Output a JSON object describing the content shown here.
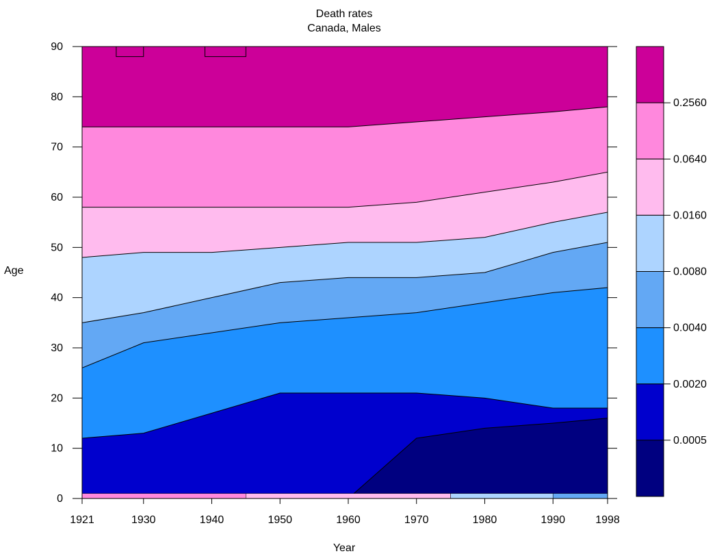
{
  "chart_data": {
    "type": "heatmap",
    "title": "Death rates",
    "subtitle": "Canada, Males",
    "xlabel": "Year",
    "ylabel": "Age",
    "xlim": [
      1921,
      1998
    ],
    "ylim": [
      0,
      90
    ],
    "x_ticks": [
      "1921",
      "1930",
      "1940",
      "1950",
      "1960",
      "1970",
      "1980",
      "1990",
      "1998"
    ],
    "y_ticks": [
      "0",
      "10",
      "20",
      "30",
      "40",
      "50",
      "60",
      "70",
      "80",
      "90"
    ],
    "legend": {
      "placement": "right",
      "colors": [
        "#000080",
        "#0000CD",
        "#1E90FF",
        "#63A8F4",
        "#ADD4FF",
        "#FFBBEE",
        "#FF88DD",
        "#CC0099"
      ],
      "labels": [
        "0.0005",
        "0.0020",
        "0.0040",
        "0.0080",
        "0.0160",
        "0.0640",
        "0.2560"
      ]
    },
    "contour_levels": [
      0.0005,
      0.002,
      0.004,
      0.008,
      0.016,
      0.064,
      0.256
    ],
    "years": [
      1921,
      1930,
      1940,
      1950,
      1960,
      1970,
      1980,
      1990,
      1998
    ],
    "boundaries": [
      {
        "level": "0.0005",
        "ages": [
          null,
          null,
          null,
          null,
          null,
          12,
          14,
          15,
          16
        ]
      },
      {
        "level": "0.0020",
        "ages": [
          12,
          13,
          17,
          21,
          21,
          21,
          20,
          18,
          18
        ]
      },
      {
        "level": "0.0040",
        "ages": [
          26,
          31,
          33,
          35,
          36,
          37,
          39,
          41,
          42
        ]
      },
      {
        "level": "0.0080",
        "ages": [
          35,
          37,
          40,
          43,
          44,
          44,
          45,
          49,
          51
        ]
      },
      {
        "level": "0.0160",
        "ages": [
          48,
          49,
          49,
          50,
          51,
          51,
          52,
          55,
          57
        ]
      },
      {
        "level": "0.0640",
        "ages": [
          58,
          58,
          58,
          58,
          58,
          59,
          61,
          63,
          65
        ]
      },
      {
        "level": "0.2560",
        "ages": [
          74,
          74,
          74,
          74,
          74,
          75,
          76,
          77,
          78
        ]
      }
    ],
    "infant_row_age0": [
      {
        "from": 1921,
        "to": 1945,
        "band": "0.0640"
      },
      {
        "from": 1945,
        "to": 1975,
        "band": "0.0160"
      },
      {
        "from": 1975,
        "to": 1990,
        "band": "0.0080"
      },
      {
        "from": 1990,
        "to": 1998,
        "band": "0.0040"
      }
    ],
    "grid": false
  }
}
